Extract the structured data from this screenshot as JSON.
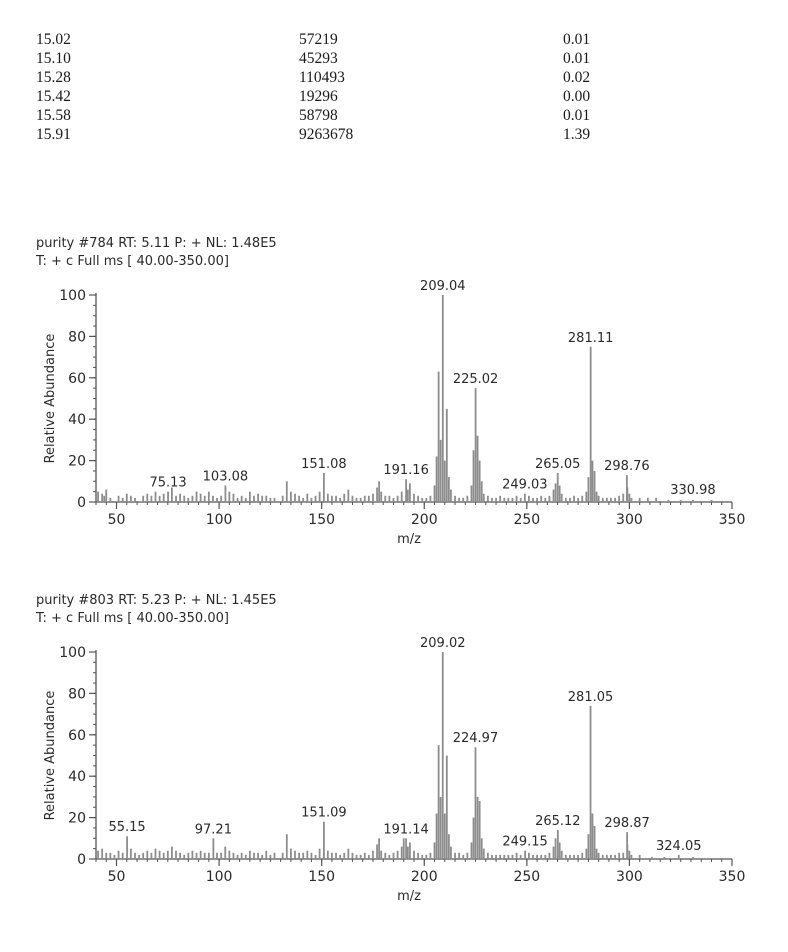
{
  "table": {
    "rows": [
      [
        "15.02",
        "57219",
        "0.01"
      ],
      [
        "15.10",
        "45293",
        "0.01"
      ],
      [
        "15.28",
        "110493",
        "0.02"
      ],
      [
        "15.42",
        "19296",
        "0.00"
      ],
      [
        "15.58",
        "58798",
        "0.01"
      ],
      [
        "15.91",
        "9263678",
        "1.39"
      ]
    ]
  },
  "chart_data": [
    {
      "type": "bar",
      "title": "purity #784  RT: 5.11  P: +  NL: 1.48E5",
      "subtitle": "T: + c Full ms [ 40.00-350.00]",
      "xlabel": "m/z",
      "ylabel": "Relative Abundance",
      "xlim": [
        40,
        350
      ],
      "ylim": [
        0,
        100
      ],
      "xticks": [
        50,
        100,
        150,
        200,
        250,
        300,
        350
      ],
      "yticks": [
        0,
        20,
        40,
        60,
        80,
        100
      ],
      "peak_labels": [
        {
          "x": 75.13,
          "text": "75.13"
        },
        {
          "x": 103.08,
          "text": "103.08"
        },
        {
          "x": 151.08,
          "text": "151.08"
        },
        {
          "x": 191.16,
          "text": "191.16"
        },
        {
          "x": 209.04,
          "text": "209.04"
        },
        {
          "x": 225.02,
          "text": "225.02"
        },
        {
          "x": 249.03,
          "text": "249.03"
        },
        {
          "x": 265.05,
          "text": "265.05"
        },
        {
          "x": 281.11,
          "text": "281.11"
        },
        {
          "x": 298.76,
          "text": "298.76"
        },
        {
          "x": 330.98,
          "text": "330.98"
        }
      ],
      "peaks": [
        [
          41,
          5
        ],
        [
          43,
          4
        ],
        [
          44,
          3
        ],
        [
          45,
          6
        ],
        [
          47,
          2
        ],
        [
          51,
          3
        ],
        [
          53,
          2
        ],
        [
          55,
          4
        ],
        [
          57,
          3
        ],
        [
          59,
          2
        ],
        [
          63,
          3
        ],
        [
          65,
          4
        ],
        [
          67,
          3
        ],
        [
          69,
          5
        ],
        [
          71,
          3
        ],
        [
          73,
          4
        ],
        [
          75.13,
          5
        ],
        [
          77,
          7
        ],
        [
          79,
          3
        ],
        [
          81,
          4
        ],
        [
          83,
          3
        ],
        [
          85,
          2
        ],
        [
          87,
          3
        ],
        [
          89,
          5
        ],
        [
          91,
          4
        ],
        [
          93,
          3
        ],
        [
          95,
          5
        ],
        [
          97,
          3
        ],
        [
          99,
          2
        ],
        [
          101,
          3
        ],
        [
          103.08,
          8
        ],
        [
          105,
          5
        ],
        [
          107,
          4
        ],
        [
          109,
          2
        ],
        [
          111,
          3
        ],
        [
          113,
          2
        ],
        [
          115,
          5
        ],
        [
          117,
          3
        ],
        [
          119,
          4
        ],
        [
          121,
          3
        ],
        [
          123,
          3
        ],
        [
          125,
          2
        ],
        [
          127,
          2
        ],
        [
          131,
          3
        ],
        [
          133,
          10
        ],
        [
          135,
          5
        ],
        [
          137,
          4
        ],
        [
          139,
          3
        ],
        [
          141,
          2
        ],
        [
          143,
          4
        ],
        [
          145,
          2
        ],
        [
          147,
          3
        ],
        [
          149,
          5
        ],
        [
          151.08,
          14
        ],
        [
          153,
          4
        ],
        [
          155,
          3
        ],
        [
          157,
          3
        ],
        [
          159,
          2
        ],
        [
          161,
          4
        ],
        [
          163,
          6
        ],
        [
          165,
          3
        ],
        [
          167,
          2
        ],
        [
          169,
          2
        ],
        [
          171,
          3
        ],
        [
          173,
          3
        ],
        [
          175,
          4
        ],
        [
          177,
          7
        ],
        [
          178,
          10
        ],
        [
          179,
          5
        ],
        [
          181,
          3
        ],
        [
          183,
          3
        ],
        [
          185,
          2
        ],
        [
          187,
          3
        ],
        [
          189,
          5
        ],
        [
          191.16,
          11
        ],
        [
          192,
          6
        ],
        [
          193,
          9
        ],
        [
          195,
          4
        ],
        [
          197,
          3
        ],
        [
          199,
          2
        ],
        [
          201,
          2
        ],
        [
          203,
          3
        ],
        [
          205,
          8
        ],
        [
          206,
          22
        ],
        [
          207,
          63
        ],
        [
          208,
          30
        ],
        [
          209.04,
          100
        ],
        [
          210,
          20
        ],
        [
          211,
          45
        ],
        [
          212,
          12
        ],
        [
          213,
          6
        ],
        [
          215,
          3
        ],
        [
          217,
          2
        ],
        [
          219,
          2
        ],
        [
          221,
          3
        ],
        [
          223,
          8
        ],
        [
          224,
          25
        ],
        [
          225.02,
          55
        ],
        [
          226,
          32
        ],
        [
          227,
          20
        ],
        [
          228,
          10
        ],
        [
          229,
          4
        ],
        [
          231,
          3
        ],
        [
          233,
          2
        ],
        [
          235,
          2
        ],
        [
          237,
          3
        ],
        [
          239,
          2
        ],
        [
          241,
          2
        ],
        [
          243,
          2
        ],
        [
          245,
          3
        ],
        [
          247,
          2
        ],
        [
          249.03,
          4
        ],
        [
          251,
          3
        ],
        [
          253,
          2
        ],
        [
          255,
          2
        ],
        [
          257,
          3
        ],
        [
          259,
          2
        ],
        [
          261,
          3
        ],
        [
          263,
          6
        ],
        [
          264,
          9
        ],
        [
          265.05,
          14
        ],
        [
          266,
          8
        ],
        [
          267,
          4
        ],
        [
          269,
          2
        ],
        [
          271,
          2
        ],
        [
          273,
          3
        ],
        [
          275,
          2
        ],
        [
          277,
          3
        ],
        [
          279,
          5
        ],
        [
          280,
          12
        ],
        [
          281.11,
          75
        ],
        [
          282,
          20
        ],
        [
          283,
          15
        ],
        [
          284,
          5
        ],
        [
          285,
          3
        ],
        [
          287,
          2
        ],
        [
          289,
          2
        ],
        [
          291,
          2
        ],
        [
          293,
          2
        ],
        [
          295,
          3
        ],
        [
          297,
          4
        ],
        [
          298.76,
          13
        ],
        [
          299,
          7
        ],
        [
          300,
          4
        ],
        [
          301,
          2
        ],
        [
          305,
          2
        ],
        [
          309,
          2
        ],
        [
          313,
          2
        ],
        [
          319,
          1
        ],
        [
          325,
          1
        ],
        [
          330.98,
          1
        ],
        [
          340,
          1
        ]
      ]
    },
    {
      "type": "bar",
      "title": "purity #803  RT: 5.23  P: +  NL: 1.45E5",
      "subtitle": "T: + c Full ms [ 40.00-350.00]",
      "xlabel": "m/z",
      "ylabel": "Relative Abundance",
      "xlim": [
        40,
        350
      ],
      "ylim": [
        0,
        100
      ],
      "xticks": [
        50,
        100,
        150,
        200,
        250,
        300,
        350
      ],
      "yticks": [
        0,
        20,
        40,
        60,
        80,
        100
      ],
      "peak_labels": [
        {
          "x": 55.15,
          "text": "55.15"
        },
        {
          "x": 97.21,
          "text": "97.21"
        },
        {
          "x": 151.09,
          "text": "151.09"
        },
        {
          "x": 191.14,
          "text": "191.14"
        },
        {
          "x": 209.02,
          "text": "209.02"
        },
        {
          "x": 224.97,
          "text": "224.97"
        },
        {
          "x": 249.15,
          "text": "249.15"
        },
        {
          "x": 265.12,
          "text": "265.12"
        },
        {
          "x": 281.05,
          "text": "281.05"
        },
        {
          "x": 298.87,
          "text": "298.87"
        },
        {
          "x": 324.05,
          "text": "324.05"
        }
      ],
      "peaks": [
        [
          41,
          4
        ],
        [
          43,
          5
        ],
        [
          45,
          3
        ],
        [
          47,
          3
        ],
        [
          49,
          2
        ],
        [
          51,
          4
        ],
        [
          53,
          3
        ],
        [
          55.15,
          11
        ],
        [
          57,
          5
        ],
        [
          59,
          3
        ],
        [
          61,
          2
        ],
        [
          63,
          3
        ],
        [
          65,
          4
        ],
        [
          67,
          3
        ],
        [
          69,
          5
        ],
        [
          71,
          4
        ],
        [
          73,
          3
        ],
        [
          75,
          4
        ],
        [
          77,
          6
        ],
        [
          79,
          4
        ],
        [
          81,
          3
        ],
        [
          83,
          2
        ],
        [
          85,
          3
        ],
        [
          87,
          4
        ],
        [
          89,
          3
        ],
        [
          91,
          4
        ],
        [
          93,
          3
        ],
        [
          95,
          3
        ],
        [
          97.21,
          10
        ],
        [
          99,
          3
        ],
        [
          101,
          3
        ],
        [
          103,
          6
        ],
        [
          105,
          4
        ],
        [
          107,
          3
        ],
        [
          109,
          2
        ],
        [
          111,
          3
        ],
        [
          113,
          2
        ],
        [
          115,
          4
        ],
        [
          117,
          3
        ],
        [
          119,
          3
        ],
        [
          121,
          2
        ],
        [
          123,
          4
        ],
        [
          125,
          2
        ],
        [
          127,
          3
        ],
        [
          131,
          3
        ],
        [
          133,
          12
        ],
        [
          135,
          5
        ],
        [
          137,
          4
        ],
        [
          139,
          3
        ],
        [
          141,
          3
        ],
        [
          143,
          4
        ],
        [
          145,
          3
        ],
        [
          147,
          2
        ],
        [
          149,
          5
        ],
        [
          151.09,
          18
        ],
        [
          153,
          4
        ],
        [
          155,
          3
        ],
        [
          157,
          3
        ],
        [
          159,
          2
        ],
        [
          161,
          3
        ],
        [
          163,
          5
        ],
        [
          165,
          3
        ],
        [
          167,
          2
        ],
        [
          169,
          2
        ],
        [
          171,
          3
        ],
        [
          173,
          2
        ],
        [
          175,
          4
        ],
        [
          177,
          7
        ],
        [
          178,
          10
        ],
        [
          179,
          4
        ],
        [
          181,
          3
        ],
        [
          183,
          2
        ],
        [
          185,
          3
        ],
        [
          187,
          4
        ],
        [
          189,
          6
        ],
        [
          190,
          10
        ],
        [
          191.14,
          10
        ],
        [
          192,
          6
        ],
        [
          193,
          8
        ],
        [
          195,
          4
        ],
        [
          197,
          3
        ],
        [
          199,
          2
        ],
        [
          201,
          2
        ],
        [
          203,
          3
        ],
        [
          205,
          8
        ],
        [
          206,
          22
        ],
        [
          207,
          55
        ],
        [
          208,
          30
        ],
        [
          209.02,
          100
        ],
        [
          210,
          22
        ],
        [
          211,
          50
        ],
        [
          212,
          12
        ],
        [
          213,
          6
        ],
        [
          215,
          3
        ],
        [
          217,
          3
        ],
        [
          219,
          2
        ],
        [
          221,
          3
        ],
        [
          223,
          8
        ],
        [
          224,
          20
        ],
        [
          224.97,
          54
        ],
        [
          226,
          30
        ],
        [
          227,
          28
        ],
        [
          228,
          10
        ],
        [
          229,
          5
        ],
        [
          231,
          3
        ],
        [
          233,
          2
        ],
        [
          235,
          2
        ],
        [
          237,
          2
        ],
        [
          239,
          2
        ],
        [
          241,
          2
        ],
        [
          243,
          2
        ],
        [
          245,
          3
        ],
        [
          247,
          2
        ],
        [
          249.15,
          4
        ],
        [
          251,
          3
        ],
        [
          253,
          2
        ],
        [
          255,
          2
        ],
        [
          257,
          2
        ],
        [
          259,
          2
        ],
        [
          261,
          3
        ],
        [
          263,
          6
        ],
        [
          264,
          10
        ],
        [
          265.12,
          14
        ],
        [
          266,
          8
        ],
        [
          267,
          4
        ],
        [
          269,
          2
        ],
        [
          271,
          2
        ],
        [
          273,
          2
        ],
        [
          275,
          2
        ],
        [
          277,
          3
        ],
        [
          279,
          5
        ],
        [
          280,
          12
        ],
        [
          281.05,
          74
        ],
        [
          282,
          22
        ],
        [
          283,
          16
        ],
        [
          284,
          5
        ],
        [
          285,
          3
        ],
        [
          287,
          2
        ],
        [
          289,
          2
        ],
        [
          291,
          2
        ],
        [
          293,
          2
        ],
        [
          295,
          3
        ],
        [
          297,
          3
        ],
        [
          298.87,
          13
        ],
        [
          299,
          7
        ],
        [
          300,
          4
        ],
        [
          301,
          2
        ],
        [
          305,
          2
        ],
        [
          311,
          1
        ],
        [
          317,
          1
        ],
        [
          324.05,
          2
        ],
        [
          331,
          1
        ]
      ]
    }
  ]
}
